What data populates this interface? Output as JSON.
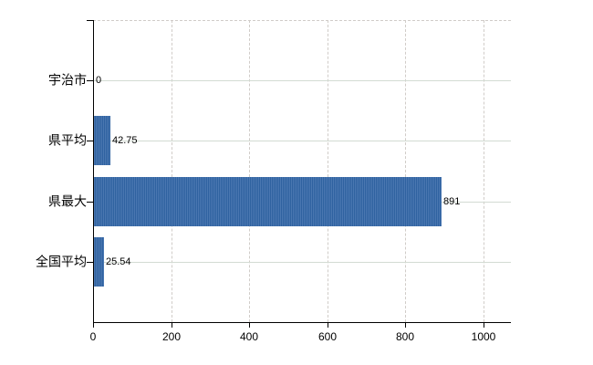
{
  "chart_data": {
    "type": "bar",
    "orientation": "horizontal",
    "title": "",
    "xlabel": "",
    "ylabel": "",
    "legend": "none",
    "categories": [
      "宇治市",
      "県平均",
      "県最大",
      "全国平均"
    ],
    "values": [
      0,
      42.75,
      891,
      25.54
    ],
    "value_labels": [
      "0",
      "42.75",
      "891",
      "25.54"
    ],
    "xlim": [
      0,
      1070
    ],
    "xtick_values": [
      0,
      200,
      400,
      600,
      800,
      1000
    ],
    "xtick_labels": [
      "0",
      "200",
      "400",
      "600",
      "800",
      "1000"
    ],
    "grid": {
      "vertical_style": "dashed",
      "horizontal_style": "solid",
      "top_border_style": "dashed"
    },
    "colors": {
      "bar": "#3a6ba6",
      "bar_dither_light": "#4a77b1",
      "bar_dither_dark": "#2f62a0",
      "vertical_grid": "#d0ccc8",
      "horizontal_grid": "#d3dbd3",
      "axis": "#000000",
      "text": "#000000",
      "background": "#ffffff"
    }
  }
}
